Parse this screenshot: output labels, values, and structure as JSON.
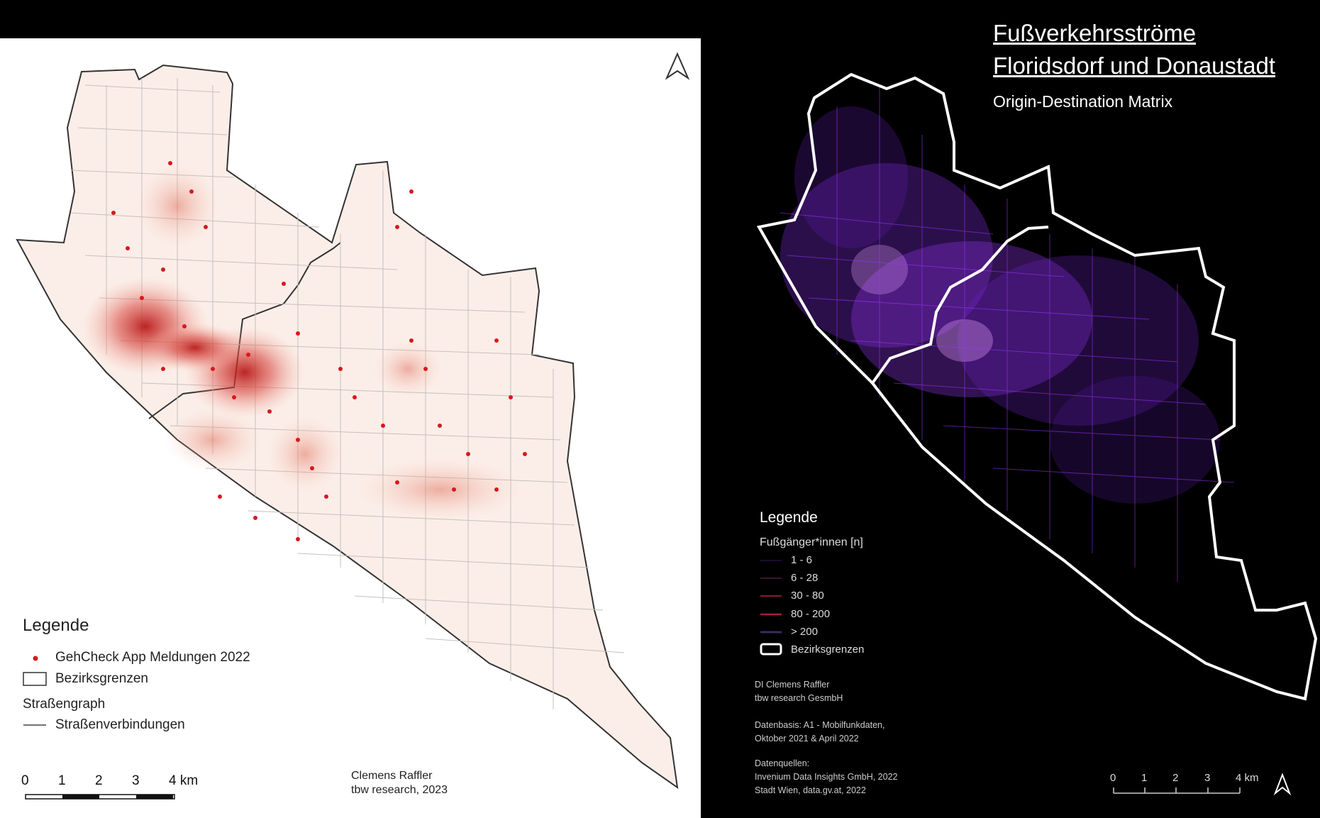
{
  "left_map": {
    "legend_title": "Legende",
    "legend_items": [
      {
        "label": "GehCheck App Meldungen 2022",
        "symbol": "red-point"
      },
      {
        "label": "Bezirksgrenzen",
        "symbol": "outline-box"
      }
    ],
    "legend_group_title": "Straßengraph",
    "legend_group_item": "Straßenverbindungen",
    "scale_labels": [
      "0",
      "1",
      "2",
      "3",
      "4 km"
    ],
    "credit_line1": "Clemens Raffler",
    "credit_line2": "tbw research, 2023",
    "colors": {
      "points": "#d7191c",
      "heat": "#c81e1e",
      "background": "#fbeee8",
      "roads": "#bdbdbd"
    },
    "north_arrow_icon": "north-arrow-icon"
  },
  "right_map": {
    "title_line1": "Fußverkehrsströme",
    "title_line2": "Floridsdorf und Donaustadt",
    "subtitle": "Origin-Destination Matrix",
    "legend_title": "Legende",
    "legend_subtitle": "Fußgänger*innen [n]",
    "legend_classes": [
      "1 - 6",
      "6 - 28",
      "30 - 80",
      "80 - 200",
      "> 200"
    ],
    "legend_boundary": "Bezirksgrenzen",
    "author_line1": "DI Clemens Raffler",
    "author_line2": "tbw research GesmbH",
    "data_basis_line1": "Datenbasis: A1 - Mobilfunkdaten,",
    "data_basis_line2": "Oktober 2021 & April 2022",
    "sources_line1": "Datenquellen:",
    "sources_line2": "Invenium Data Insights GmbH, 2022",
    "sources_line3": "Stadt Wien, data.gv.at, 2022",
    "scale_labels": [
      "0",
      "1",
      "2",
      "3",
      "4 km"
    ],
    "colors": {
      "flows": "#a033ff",
      "highlight": "#e6a3ff",
      "boundary": "#ffffff",
      "background": "#000000"
    },
    "north_arrow_icon": "north-arrow-icon"
  }
}
